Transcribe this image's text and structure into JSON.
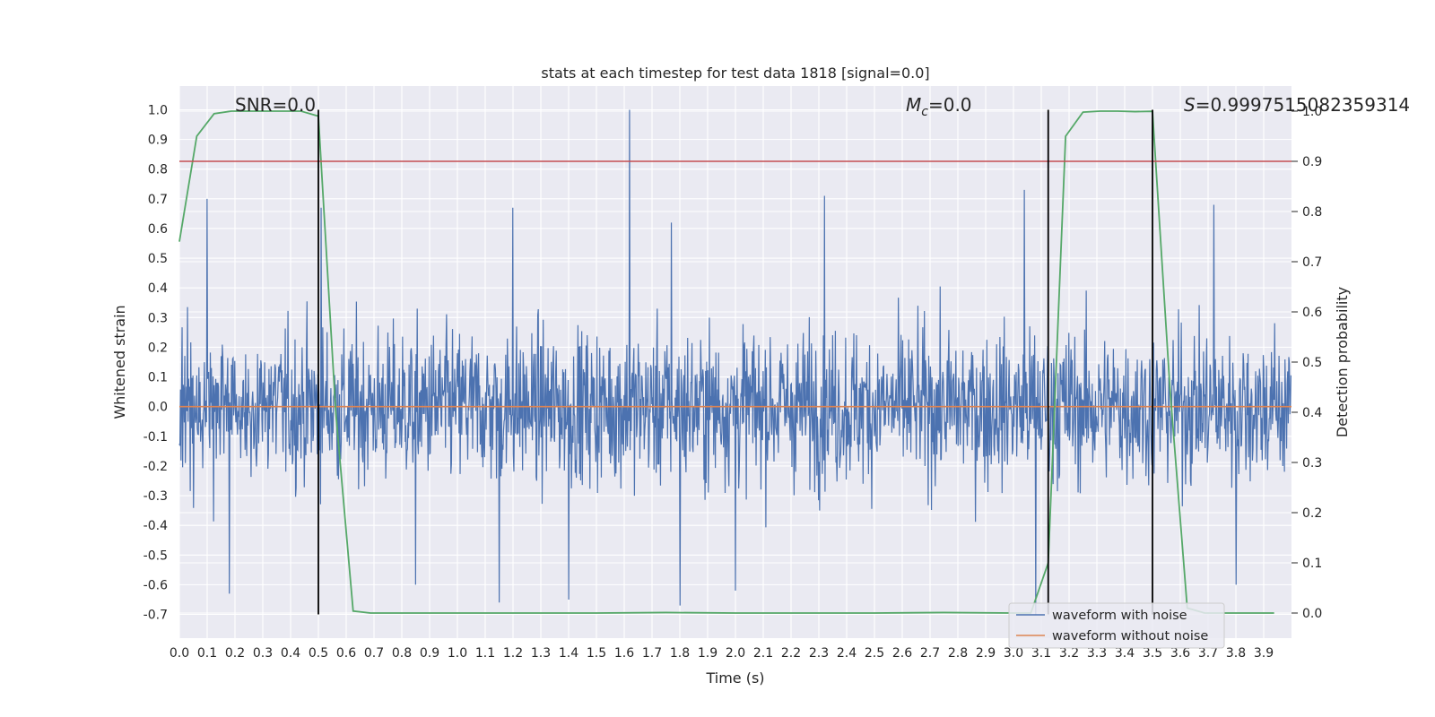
{
  "chart_data": {
    "type": "line",
    "title": "stats at each timestep for test data 1818 [signal=0.0]",
    "xlabel": "Time (s)",
    "ylabel": "Whitened strain",
    "y2label": "Detection probability",
    "xlim": [
      0.0,
      4.0
    ],
    "ylim": [
      -0.78,
      1.08
    ],
    "y2lim": [
      -0.05,
      1.05
    ],
    "xticks": [
      "0.0",
      "0.1",
      "0.2",
      "0.3",
      "0.4",
      "0.5",
      "0.6",
      "0.7",
      "0.8",
      "0.9",
      "1.0",
      "1.1",
      "1.2",
      "1.3",
      "1.4",
      "1.5",
      "1.6",
      "1.7",
      "1.8",
      "1.9",
      "2.0",
      "2.1",
      "2.2",
      "2.3",
      "2.4",
      "2.5",
      "2.6",
      "2.7",
      "2.8",
      "2.9",
      "3.0",
      "3.1",
      "3.2",
      "3.3",
      "3.4",
      "3.5",
      "3.6",
      "3.7",
      "3.8",
      "3.9"
    ],
    "yticks": [
      "-0.7",
      "-0.6",
      "-0.5",
      "-0.4",
      "-0.3",
      "-0.2",
      "-0.1",
      "0.0",
      "0.1",
      "0.2",
      "0.3",
      "0.4",
      "0.5",
      "0.6",
      "0.7",
      "0.8",
      "0.9",
      "1.0"
    ],
    "y2ticks": [
      "0.0",
      "0.1",
      "0.2",
      "0.3",
      "0.4",
      "0.5",
      "0.6",
      "0.7",
      "0.8",
      "0.9",
      "1.0"
    ],
    "grid": true,
    "legend_position": "lower-right",
    "annotations": {
      "snr": "SNR=0.0",
      "mc_symbol": "M",
      "mc_sub": "c",
      "mc_value": "=0.0",
      "s_symbol": "S",
      "s_value": "=0.9997515082359314"
    },
    "colors": {
      "noise": "#4c72b0",
      "clean": "#dd8452",
      "prob": "#55a868",
      "threshold": "#c44e52",
      "marker": "#000000",
      "background": "#eaeaf2",
      "grid": "#ffffff"
    },
    "threshold": 0.9,
    "vertical_markers": [
      0.5,
      3.125,
      3.5
    ],
    "series": [
      {
        "name": "waveform with noise",
        "axis": "left",
        "style": "noise",
        "sample_rate": 512,
        "envelope_typical": [
          -0.32,
          0.33
        ],
        "max": 1.0,
        "min": -0.7,
        "peaks": [
          {
            "x": 1.62,
            "y": 1.0
          },
          {
            "x": 0.1,
            "y": 0.7
          },
          {
            "x": 2.32,
            "y": 0.71
          },
          {
            "x": 3.04,
            "y": 0.73
          },
          {
            "x": 3.72,
            "y": 0.68
          },
          {
            "x": 1.2,
            "y": 0.67
          },
          {
            "x": 0.51,
            "y": 0.67
          },
          {
            "x": 1.77,
            "y": 0.62
          }
        ],
        "troughs": [
          {
            "x": 3.08,
            "y": -0.7
          },
          {
            "x": 1.15,
            "y": -0.66
          },
          {
            "x": 1.8,
            "y": -0.67
          },
          {
            "x": 0.18,
            "y": -0.63
          },
          {
            "x": 2.0,
            "y": -0.62
          },
          {
            "x": 3.8,
            "y": -0.6
          },
          {
            "x": 0.85,
            "y": -0.6
          },
          {
            "x": 1.4,
            "y": -0.65
          }
        ]
      },
      {
        "name": "waveform without noise",
        "axis": "left",
        "style": "clean",
        "x": [
          0.0,
          4.0
        ],
        "y": [
          0.0,
          0.0
        ]
      },
      {
        "name": "detection probability",
        "axis": "right",
        "style": "prob",
        "x": [
          0.0,
          0.0625,
          0.125,
          0.1875,
          0.25,
          0.3125,
          0.375,
          0.4375,
          0.5,
          0.5625,
          0.625,
          0.6875,
          0.75,
          1.0,
          1.25,
          1.5,
          1.75,
          2.0,
          2.25,
          2.5,
          2.75,
          3.0,
          3.0625,
          3.125,
          3.1875,
          3.25,
          3.3125,
          3.375,
          3.4375,
          3.5,
          3.5625,
          3.625,
          3.6875,
          3.75,
          3.8125,
          3.875,
          3.9375
        ],
        "y": [
          0.74,
          0.95,
          0.995,
          1.0,
          1.0,
          1.0,
          1.0,
          1.0,
          0.99,
          0.4,
          0.004,
          0.0,
          0.0,
          0.0,
          0.0,
          0.0,
          0.001,
          0.0,
          0.0,
          0.0,
          0.001,
          0.0,
          0.0,
          0.1,
          0.95,
          0.998,
          1.0,
          1.0,
          0.999,
          0.9997,
          0.45,
          0.01,
          0.0,
          0.0,
          0.0,
          0.0,
          0.0
        ]
      }
    ]
  }
}
